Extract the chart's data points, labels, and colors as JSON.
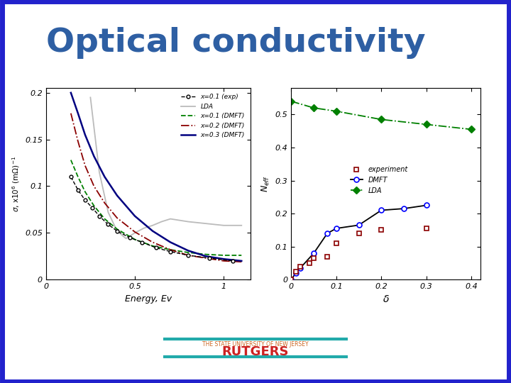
{
  "title": "Optical conductivity",
  "title_color": "#2E5FA3",
  "title_fontsize": 34,
  "bg_color": "#FFFFFF",
  "border_color": "#2222CC",
  "footer_text1": "THE STATE UNIVERSITY OF NEW JERSEY",
  "footer_text2": "RUTGERS",
  "footer_color1": "#CC6622",
  "footer_color2": "#CC2222",
  "footer_line_color": "#22AAAA",
  "left_plot": {
    "xlabel": "Energy, Ev",
    "xlim": [
      0,
      1.15
    ],
    "ylim": [
      0,
      0.205
    ],
    "yticks": [
      0,
      0.05,
      0.1,
      0.15,
      0.2
    ],
    "xticks": [
      0,
      0.5,
      1
    ]
  },
  "right_plot": {
    "xlim": [
      0,
      0.42
    ],
    "ylim": [
      0,
      0.58
    ],
    "yticks": [
      0,
      0.1,
      0.2,
      0.3,
      0.4,
      0.5
    ],
    "xticks": [
      0,
      0.1,
      0.2,
      0.3,
      0.4
    ]
  },
  "exp_x01_energy": [
    0.14,
    0.18,
    0.22,
    0.26,
    0.3,
    0.35,
    0.4,
    0.47,
    0.54,
    0.62,
    0.7,
    0.8,
    0.92,
    1.05
  ],
  "exp_x01_sigma": [
    0.11,
    0.096,
    0.085,
    0.077,
    0.068,
    0.059,
    0.052,
    0.045,
    0.04,
    0.034,
    0.03,
    0.026,
    0.023,
    0.02
  ],
  "lda_energy": [
    0.25,
    0.3,
    0.35,
    0.4,
    0.45,
    0.5,
    0.55,
    0.6,
    0.65,
    0.7,
    0.8,
    0.9,
    1.0,
    1.1
  ],
  "lda_sigma": [
    0.195,
    0.115,
    0.072,
    0.052,
    0.044,
    0.05,
    0.055,
    0.058,
    0.062,
    0.065,
    0.062,
    0.06,
    0.058,
    0.058
  ],
  "dmft_x01_energy": [
    0.14,
    0.18,
    0.22,
    0.27,
    0.33,
    0.4,
    0.5,
    0.6,
    0.7,
    0.8,
    0.9,
    1.0,
    1.1
  ],
  "dmft_x01_sigma": [
    0.128,
    0.11,
    0.094,
    0.079,
    0.065,
    0.054,
    0.043,
    0.036,
    0.032,
    0.029,
    0.027,
    0.026,
    0.026
  ],
  "dmft_x02_energy": [
    0.14,
    0.18,
    0.22,
    0.27,
    0.33,
    0.4,
    0.5,
    0.6,
    0.7,
    0.8,
    0.9,
    1.0,
    1.1
  ],
  "dmft_x02_sigma": [
    0.178,
    0.148,
    0.122,
    0.1,
    0.082,
    0.066,
    0.051,
    0.04,
    0.032,
    0.026,
    0.023,
    0.02,
    0.019
  ],
  "dmft_x03_energy": [
    0.14,
    0.18,
    0.22,
    0.27,
    0.33,
    0.4,
    0.5,
    0.6,
    0.7,
    0.8,
    0.9,
    1.0,
    1.1
  ],
  "dmft_x03_sigma": [
    0.2,
    0.178,
    0.155,
    0.132,
    0.11,
    0.09,
    0.068,
    0.052,
    0.04,
    0.031,
    0.025,
    0.022,
    0.02
  ],
  "exp_delta": [
    0.0,
    0.01,
    0.02,
    0.04,
    0.05,
    0.08,
    0.1,
    0.15,
    0.2,
    0.3
  ],
  "exp_neff": [
    0.0,
    0.025,
    0.04,
    0.05,
    0.065,
    0.07,
    0.11,
    0.14,
    0.15,
    0.155
  ],
  "dmft_delta": [
    0.0,
    0.01,
    0.02,
    0.05,
    0.08,
    0.1,
    0.15,
    0.2,
    0.25,
    0.3
  ],
  "dmft_neff": [
    0.0,
    0.02,
    0.035,
    0.08,
    0.14,
    0.155,
    0.165,
    0.21,
    0.215,
    0.225
  ],
  "lda_delta": [
    0.0,
    0.05,
    0.1,
    0.2,
    0.3,
    0.4
  ],
  "lda_neff": [
    0.54,
    0.52,
    0.51,
    0.485,
    0.47,
    0.455
  ]
}
